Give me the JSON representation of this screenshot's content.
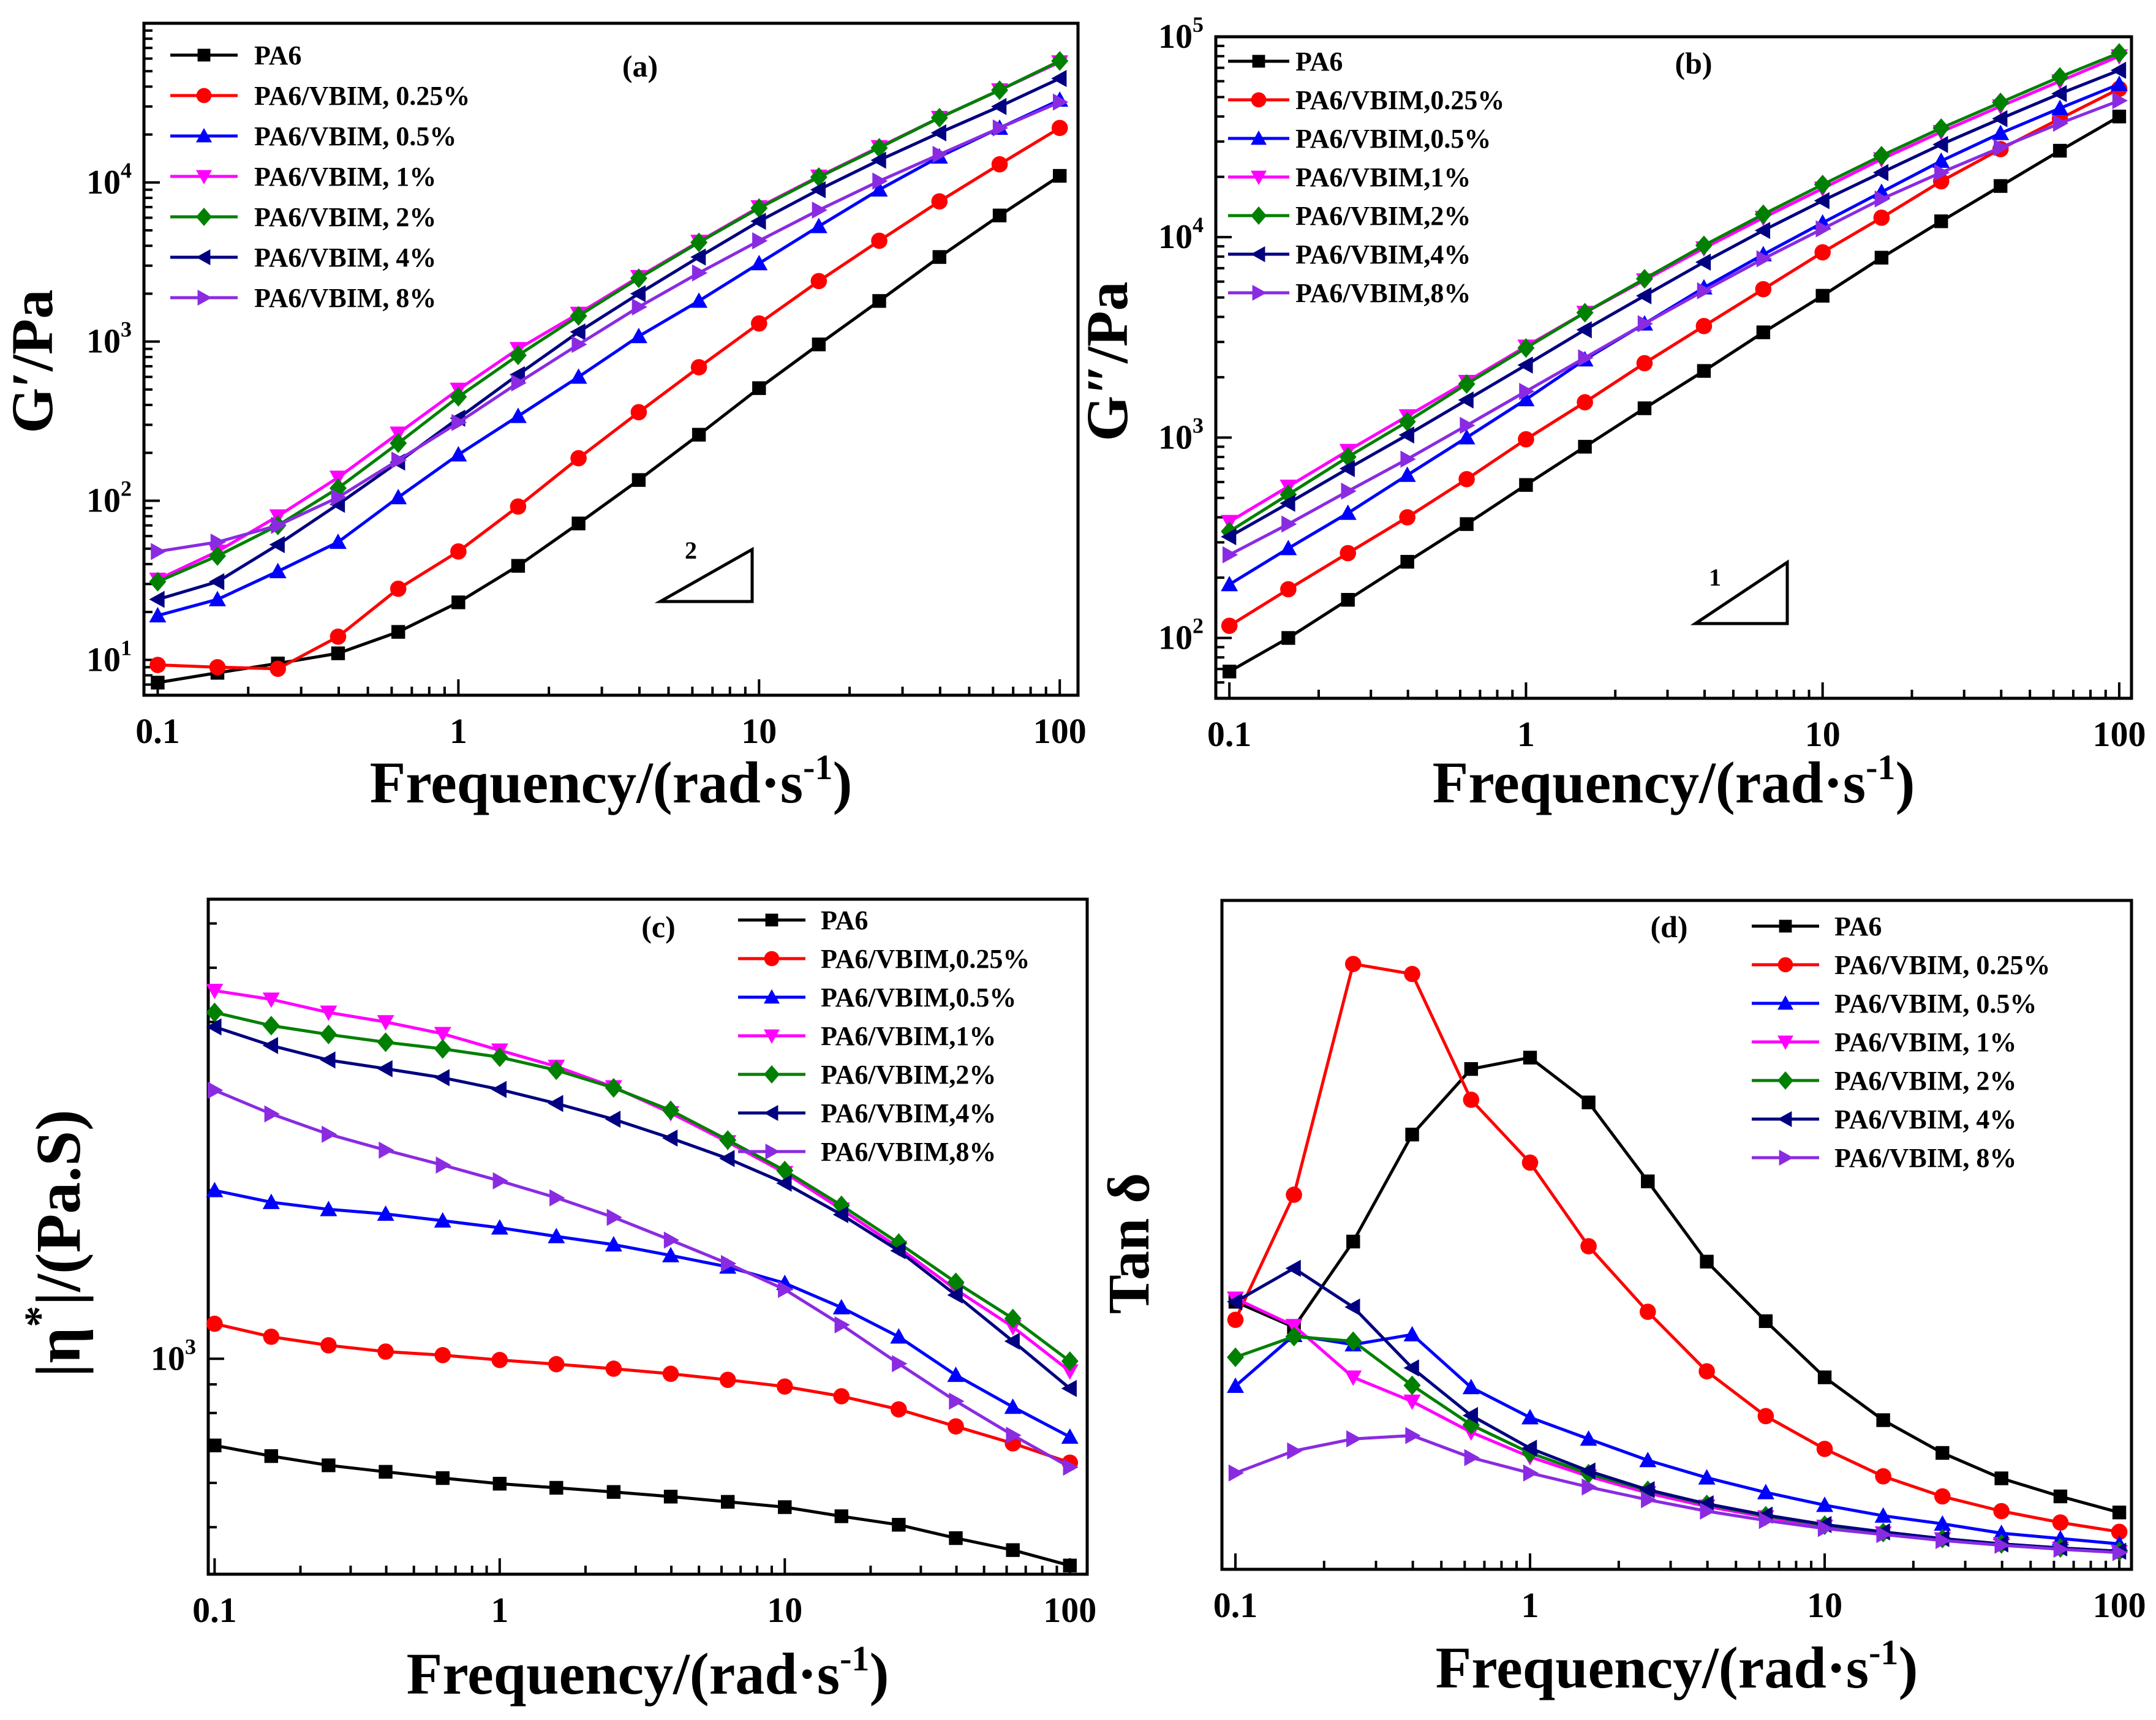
{
  "colors": {
    "PA6": "#000000",
    "VBIM_0.25": "#ff0000",
    "VBIM_0.5": "#0000ff",
    "VBIM_1": "#ff00ff",
    "VBIM_2": "#008000",
    "VBIM_4": "#000080",
    "VBIM_8": "#8a2be2"
  },
  "chart_data": [
    {
      "panel": "a",
      "type": "line",
      "panel_label": "(a)",
      "xlabel": "Frequency/(rad·s",
      "xlabel_sup": "-1",
      "xlabel_close": ")",
      "ylabel": "G′/Pa",
      "x_scale": "log",
      "y_scale": "log",
      "xlim": [
        0.09,
        115
      ],
      "ylim": [
        6,
        100000
      ],
      "xticks": [
        {
          "v": 0.1,
          "label": "0.1"
        },
        {
          "v": 1,
          "label": "1"
        },
        {
          "v": 10,
          "label": "10"
        },
        {
          "v": 100,
          "label": "100"
        }
      ],
      "yticks": [
        {
          "v": 10,
          "base": "10",
          "exp": "1"
        },
        {
          "v": 100,
          "base": "10",
          "exp": "2"
        },
        {
          "v": 1000,
          "base": "10",
          "exp": "3"
        },
        {
          "v": 10000,
          "base": "10",
          "exp": "4"
        }
      ],
      "annotation": {
        "slope_label": "2"
      },
      "x": [
        0.1,
        0.158,
        0.251,
        0.398,
        0.631,
        1,
        1.58,
        2.51,
        3.98,
        6.31,
        10,
        15.8,
        25.1,
        39.8,
        63.1,
        100
      ],
      "series": [
        {
          "name": "PA6",
          "key": "PA6",
          "marker": "square",
          "values": [
            7.2,
            8.3,
            9.5,
            11,
            15,
            23,
            39,
            72,
            135,
            260,
            510,
            960,
            1800,
            3400,
            6200,
            11000
          ]
        },
        {
          "name": "PA6/VBIM, 0.25%",
          "key": "VBIM_0.25",
          "marker": "circle",
          "values": [
            9.3,
            9,
            8.8,
            14,
            28,
            48,
            92,
            185,
            360,
            690,
            1300,
            2400,
            4300,
            7600,
            13000,
            22000
          ]
        },
        {
          "name": "PA6/VBIM, 0.5%",
          "key": "VBIM_0.5",
          "marker": "triangle-up",
          "values": [
            19,
            24,
            36,
            55,
            105,
            195,
            340,
            600,
            1080,
            1800,
            3100,
            5300,
            9000,
            14500,
            22000,
            33000
          ]
        },
        {
          "name": "PA6/VBIM, 1%",
          "key": "VBIM_1",
          "marker": "triangle-down",
          "values": [
            32,
            48,
            80,
            140,
            265,
            500,
            900,
            1500,
            2550,
            4250,
            7000,
            10900,
            16700,
            25500,
            38000,
            57000
          ]
        },
        {
          "name": "PA6/VBIM, 2%",
          "key": "VBIM_2",
          "marker": "diamond",
          "values": [
            31,
            45,
            70,
            120,
            230,
            450,
            820,
            1450,
            2500,
            4200,
            6900,
            10800,
            16500,
            25500,
            38000,
            58000
          ]
        },
        {
          "name": "PA6/VBIM, 4%",
          "key": "VBIM_4",
          "marker": "triangle-left",
          "values": [
            24,
            31,
            53,
            95,
            175,
            330,
            620,
            1150,
            2000,
            3400,
            5700,
            9000,
            13800,
            20500,
            30000,
            45000
          ]
        },
        {
          "name": "PA6/VBIM, 8%",
          "key": "VBIM_8",
          "marker": "triangle-right",
          "values": [
            48,
            55,
            70,
            105,
            180,
            310,
            550,
            960,
            1650,
            2700,
            4300,
            6700,
            10200,
            15000,
            22000,
            32000
          ]
        }
      ]
    },
    {
      "panel": "b",
      "type": "line",
      "panel_label": "(b)",
      "xlabel": "Frequency/(rad·s",
      "xlabel_sup": "-1",
      "xlabel_close": ")",
      "ylabel": "G″/Pa",
      "x_scale": "log",
      "y_scale": "log",
      "xlim": [
        0.09,
        110
      ],
      "ylim": [
        50,
        100000
      ],
      "xticks": [
        {
          "v": 0.1,
          "label": "0.1"
        },
        {
          "v": 1,
          "label": "1"
        },
        {
          "v": 10,
          "label": "10"
        },
        {
          "v": 100,
          "label": "100"
        }
      ],
      "yticks": [
        {
          "v": 100,
          "base": "10",
          "exp": "2"
        },
        {
          "v": 1000,
          "base": "10",
          "exp": "3"
        },
        {
          "v": 10000,
          "base": "10",
          "exp": "4"
        },
        {
          "v": 100000,
          "base": "10",
          "exp": "5"
        }
      ],
      "annotation": {
        "slope_label": "1"
      },
      "x": [
        0.1,
        0.158,
        0.251,
        0.398,
        0.631,
        1,
        1.58,
        2.51,
        3.98,
        6.31,
        10,
        15.8,
        25.1,
        39.8,
        63.1,
        100
      ],
      "series": [
        {
          "name": "PA6",
          "key": "PA6",
          "marker": "square",
          "values": [
            68,
            100,
            155,
            240,
            370,
            580,
            900,
            1400,
            2150,
            3350,
            5100,
            7900,
            12000,
            18000,
            27000,
            40000
          ]
        },
        {
          "name": "PA6/VBIM,0.25%",
          "key": "VBIM_0.25",
          "marker": "circle",
          "values": [
            115,
            175,
            265,
            400,
            620,
            980,
            1500,
            2350,
            3600,
            5500,
            8400,
            12500,
            19000,
            27500,
            39000,
            55000
          ]
        },
        {
          "name": "PA6/VBIM,0.5%",
          "key": "VBIM_0.5",
          "marker": "triangle-up",
          "values": [
            185,
            280,
            420,
            650,
            1000,
            1550,
            2450,
            3700,
            5600,
            8200,
            11800,
            16800,
            24000,
            33000,
            44000,
            58000
          ]
        },
        {
          "name": "PA6/VBIM,1%",
          "key": "VBIM_1",
          "marker": "triangle-down",
          "values": [
            380,
            570,
            860,
            1280,
            1900,
            2850,
            4200,
            6100,
            8800,
            12500,
            17500,
            24500,
            33500,
            45000,
            60000,
            80000
          ]
        },
        {
          "name": "PA6/VBIM,2%",
          "key": "VBIM_2",
          "marker": "diamond",
          "values": [
            340,
            520,
            800,
            1200,
            1850,
            2800,
            4200,
            6200,
            9100,
            13000,
            18300,
            25500,
            35000,
            47000,
            63000,
            83000
          ]
        },
        {
          "name": "PA6/VBIM,4%",
          "key": "VBIM_4",
          "marker": "triangle-left",
          "values": [
            320,
            470,
            700,
            1030,
            1540,
            2300,
            3450,
            5100,
            7500,
            10800,
            15200,
            21000,
            29000,
            39000,
            52000,
            68000
          ]
        },
        {
          "name": "PA6/VBIM,8%",
          "key": "VBIM_8",
          "marker": "triangle-right",
          "values": [
            260,
            370,
            540,
            780,
            1150,
            1700,
            2500,
            3700,
            5400,
            7800,
            11000,
            15500,
            21000,
            28000,
            37000,
            48000
          ]
        }
      ]
    },
    {
      "panel": "c",
      "type": "line",
      "panel_label": "(c)",
      "xlabel": "Frequency/(rad·s",
      "xlabel_sup": "-1",
      "xlabel_close": ")",
      "ylabel_pre": "|η",
      "ylabel_sup": "*",
      "ylabel_post": "|/(Pa.S)",
      "x_scale": "log",
      "y_scale": "log",
      "xlim": [
        0.095,
        115
      ],
      "ylim": [
        412,
        6630
      ],
      "xticks": [
        {
          "v": 0.1,
          "label": "0.1"
        },
        {
          "v": 1,
          "label": "1"
        },
        {
          "v": 10,
          "label": "10"
        },
        {
          "v": 100,
          "label": "100"
        }
      ],
      "yticks": [
        {
          "v": 1000,
          "base": "10",
          "exp": "3"
        }
      ],
      "x": [
        0.1,
        0.158,
        0.251,
        0.398,
        0.631,
        1,
        1.58,
        2.51,
        3.98,
        6.31,
        10,
        15.8,
        25.1,
        39.8,
        63.1,
        100
      ],
      "series": [
        {
          "name": "PA6",
          "key": "PA6",
          "marker": "square",
          "values": [
            700,
            670,
            645,
            628,
            612,
            598,
            588,
            578,
            567,
            555,
            543,
            523,
            505,
            478,
            455,
            427
          ]
        },
        {
          "name": "PA6/VBIM,0.25%",
          "key": "VBIM_0.25",
          "marker": "circle",
          "values": [
            1155,
            1095,
            1057,
            1030,
            1015,
            995,
            978,
            960,
            940,
            917,
            892,
            857,
            812,
            757,
            706,
            652
          ]
        },
        {
          "name": "PA6/VBIM,0.5%",
          "key": "VBIM_0.5",
          "marker": "triangle-up",
          "values": [
            2000,
            1905,
            1850,
            1815,
            1765,
            1715,
            1655,
            1600,
            1530,
            1460,
            1365,
            1235,
            1095,
            935,
            820,
            725
          ]
        },
        {
          "name": "PA6/VBIM,1%",
          "key": "VBIM_1",
          "marker": "triangle-down",
          "values": [
            4550,
            4390,
            4160,
            4000,
            3810,
            3560,
            3330,
            3060,
            2750,
            2440,
            2150,
            1850,
            1580,
            1330,
            1140,
            950
          ]
        },
        {
          "name": "PA6/VBIM,2%",
          "key": "VBIM_2",
          "marker": "diamond",
          "values": [
            4160,
            3940,
            3800,
            3680,
            3580,
            3460,
            3280,
            3050,
            2780,
            2460,
            2170,
            1880,
            1610,
            1370,
            1180,
            990
          ]
        },
        {
          "name": "PA6/VBIM,4%",
          "key": "VBIM_4",
          "marker": "triangle-left",
          "values": [
            3920,
            3630,
            3420,
            3300,
            3180,
            3030,
            2860,
            2680,
            2480,
            2280,
            2060,
            1810,
            1560,
            1300,
            1075,
            885
          ]
        },
        {
          "name": "PA6/VBIM,8%",
          "key": "VBIM_8",
          "marker": "triangle-right",
          "values": [
            3020,
            2740,
            2520,
            2360,
            2220,
            2080,
            1940,
            1790,
            1630,
            1480,
            1330,
            1150,
            980,
            840,
            730,
            640
          ]
        }
      ]
    },
    {
      "panel": "d",
      "type": "line",
      "panel_label": "(d)",
      "xlabel": "Frequency/(rad·s",
      "xlabel_sup": "-1",
      "xlabel_close": ")",
      "ylabel": "Tan δ",
      "x_scale": "log",
      "y_scale": "linear",
      "xlim": [
        0.09,
        110
      ],
      "ylim": [
        0,
        100
      ],
      "y_units": "relative (axis values not printed)",
      "xticks": [
        {
          "v": 0.1,
          "label": "0.1"
        },
        {
          "v": 1,
          "label": "1"
        },
        {
          "v": 10,
          "label": "10"
        },
        {
          "v": 100,
          "label": "100"
        }
      ],
      "yticks": [],
      "x": [
        0.1,
        0.158,
        0.251,
        0.398,
        0.631,
        1,
        1.58,
        2.51,
        3.98,
        6.31,
        10,
        15.8,
        25.1,
        39.8,
        63.1,
        100
      ],
      "series": [
        {
          "name": "PA6",
          "key": "PA6",
          "marker": "square",
          "values": [
            40,
            36.2,
            49,
            65,
            74.8,
            76.5,
            69.8,
            58,
            46,
            37.1,
            28.7,
            22.3,
            17.4,
            13.6,
            10.9,
            8.5
          ]
        },
        {
          "name": "PA6/VBIM, 0.25%",
          "key": "VBIM_0.25",
          "marker": "circle",
          "values": [
            37.3,
            56,
            90.5,
            89,
            70.2,
            60.8,
            48.3,
            38.5,
            29.6,
            22.9,
            18,
            13.9,
            10.9,
            8.7,
            7,
            5.6
          ]
        },
        {
          "name": "PA6/VBIM, 0.5%",
          "key": "VBIM_0.5",
          "marker": "triangle-up",
          "values": [
            27.4,
            35,
            33.6,
            35.1,
            27.2,
            22.7,
            19.5,
            16.3,
            13.7,
            11.5,
            9.6,
            8,
            6.8,
            5.4,
            4.6,
            3.8
          ]
        },
        {
          "name": "PA6/VBIM, 1%",
          "key": "VBIM_1",
          "marker": "triangle-down",
          "values": [
            40.5,
            36.4,
            28.7,
            25.1,
            20.5,
            16.8,
            13.9,
            11.4,
            9.4,
            7.8,
            6.4,
            5.4,
            4.5,
            3.8,
            3.1,
            2.6
          ]
        },
        {
          "name": "PA6/VBIM, 2%",
          "key": "VBIM_2",
          "marker": "diamond",
          "values": [
            31.7,
            34.8,
            34.1,
            27.5,
            21.6,
            17.4,
            14.3,
            11.8,
            9.7,
            8,
            6.6,
            5.5,
            4.6,
            3.8,
            3.2,
            2.7
          ]
        },
        {
          "name": "PA6/VBIM, 4%",
          "key": "VBIM_4",
          "marker": "triangle-left",
          "values": [
            40,
            45,
            39.2,
            30.1,
            23,
            18.1,
            14.7,
            11.9,
            9.8,
            8.1,
            6.7,
            5.6,
            4.6,
            3.8,
            3.2,
            2.7
          ]
        },
        {
          "name": "PA6/VBIM, 8%",
          "key": "VBIM_8",
          "marker": "triangle-right",
          "values": [
            14.4,
            17.7,
            19.5,
            20,
            16.7,
            14.4,
            12.3,
            10.4,
            8.7,
            7.3,
            6.1,
            5.2,
            4.3,
            3.6,
            3,
            2.5
          ]
        }
      ]
    }
  ]
}
